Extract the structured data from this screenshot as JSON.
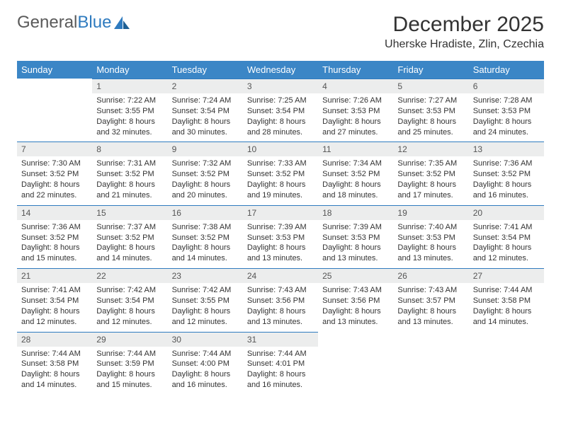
{
  "brand": {
    "part1": "General",
    "part2": "Blue"
  },
  "title": "December 2025",
  "location": "Uherske Hradiste, Zlin, Czechia",
  "colors": {
    "header_bg": "#3b86c6",
    "daynum_bg": "#eceded",
    "daynum_border": "#2f7bbf",
    "text": "#333333"
  },
  "weekdays": [
    "Sunday",
    "Monday",
    "Tuesday",
    "Wednesday",
    "Thursday",
    "Friday",
    "Saturday"
  ],
  "weeks": [
    [
      null,
      {
        "n": "1",
        "r": "7:22 AM",
        "s": "3:55 PM",
        "d": "8 hours and 32 minutes."
      },
      {
        "n": "2",
        "r": "7:24 AM",
        "s": "3:54 PM",
        "d": "8 hours and 30 minutes."
      },
      {
        "n": "3",
        "r": "7:25 AM",
        "s": "3:54 PM",
        "d": "8 hours and 28 minutes."
      },
      {
        "n": "4",
        "r": "7:26 AM",
        "s": "3:53 PM",
        "d": "8 hours and 27 minutes."
      },
      {
        "n": "5",
        "r": "7:27 AM",
        "s": "3:53 PM",
        "d": "8 hours and 25 minutes."
      },
      {
        "n": "6",
        "r": "7:28 AM",
        "s": "3:53 PM",
        "d": "8 hours and 24 minutes."
      }
    ],
    [
      {
        "n": "7",
        "r": "7:30 AM",
        "s": "3:52 PM",
        "d": "8 hours and 22 minutes."
      },
      {
        "n": "8",
        "r": "7:31 AM",
        "s": "3:52 PM",
        "d": "8 hours and 21 minutes."
      },
      {
        "n": "9",
        "r": "7:32 AM",
        "s": "3:52 PM",
        "d": "8 hours and 20 minutes."
      },
      {
        "n": "10",
        "r": "7:33 AM",
        "s": "3:52 PM",
        "d": "8 hours and 19 minutes."
      },
      {
        "n": "11",
        "r": "7:34 AM",
        "s": "3:52 PM",
        "d": "8 hours and 18 minutes."
      },
      {
        "n": "12",
        "r": "7:35 AM",
        "s": "3:52 PM",
        "d": "8 hours and 17 minutes."
      },
      {
        "n": "13",
        "r": "7:36 AM",
        "s": "3:52 PM",
        "d": "8 hours and 16 minutes."
      }
    ],
    [
      {
        "n": "14",
        "r": "7:36 AM",
        "s": "3:52 PM",
        "d": "8 hours and 15 minutes."
      },
      {
        "n": "15",
        "r": "7:37 AM",
        "s": "3:52 PM",
        "d": "8 hours and 14 minutes."
      },
      {
        "n": "16",
        "r": "7:38 AM",
        "s": "3:52 PM",
        "d": "8 hours and 14 minutes."
      },
      {
        "n": "17",
        "r": "7:39 AM",
        "s": "3:53 PM",
        "d": "8 hours and 13 minutes."
      },
      {
        "n": "18",
        "r": "7:39 AM",
        "s": "3:53 PM",
        "d": "8 hours and 13 minutes."
      },
      {
        "n": "19",
        "r": "7:40 AM",
        "s": "3:53 PM",
        "d": "8 hours and 13 minutes."
      },
      {
        "n": "20",
        "r": "7:41 AM",
        "s": "3:54 PM",
        "d": "8 hours and 12 minutes."
      }
    ],
    [
      {
        "n": "21",
        "r": "7:41 AM",
        "s": "3:54 PM",
        "d": "8 hours and 12 minutes."
      },
      {
        "n": "22",
        "r": "7:42 AM",
        "s": "3:54 PM",
        "d": "8 hours and 12 minutes."
      },
      {
        "n": "23",
        "r": "7:42 AM",
        "s": "3:55 PM",
        "d": "8 hours and 12 minutes."
      },
      {
        "n": "24",
        "r": "7:43 AM",
        "s": "3:56 PM",
        "d": "8 hours and 13 minutes."
      },
      {
        "n": "25",
        "r": "7:43 AM",
        "s": "3:56 PM",
        "d": "8 hours and 13 minutes."
      },
      {
        "n": "26",
        "r": "7:43 AM",
        "s": "3:57 PM",
        "d": "8 hours and 13 minutes."
      },
      {
        "n": "27",
        "r": "7:44 AM",
        "s": "3:58 PM",
        "d": "8 hours and 14 minutes."
      }
    ],
    [
      {
        "n": "28",
        "r": "7:44 AM",
        "s": "3:58 PM",
        "d": "8 hours and 14 minutes."
      },
      {
        "n": "29",
        "r": "7:44 AM",
        "s": "3:59 PM",
        "d": "8 hours and 15 minutes."
      },
      {
        "n": "30",
        "r": "7:44 AM",
        "s": "4:00 PM",
        "d": "8 hours and 16 minutes."
      },
      {
        "n": "31",
        "r": "7:44 AM",
        "s": "4:01 PM",
        "d": "8 hours and 16 minutes."
      },
      null,
      null,
      null
    ]
  ],
  "labels": {
    "sunrise": "Sunrise: ",
    "sunset": "Sunset: ",
    "daylight": "Daylight: "
  }
}
